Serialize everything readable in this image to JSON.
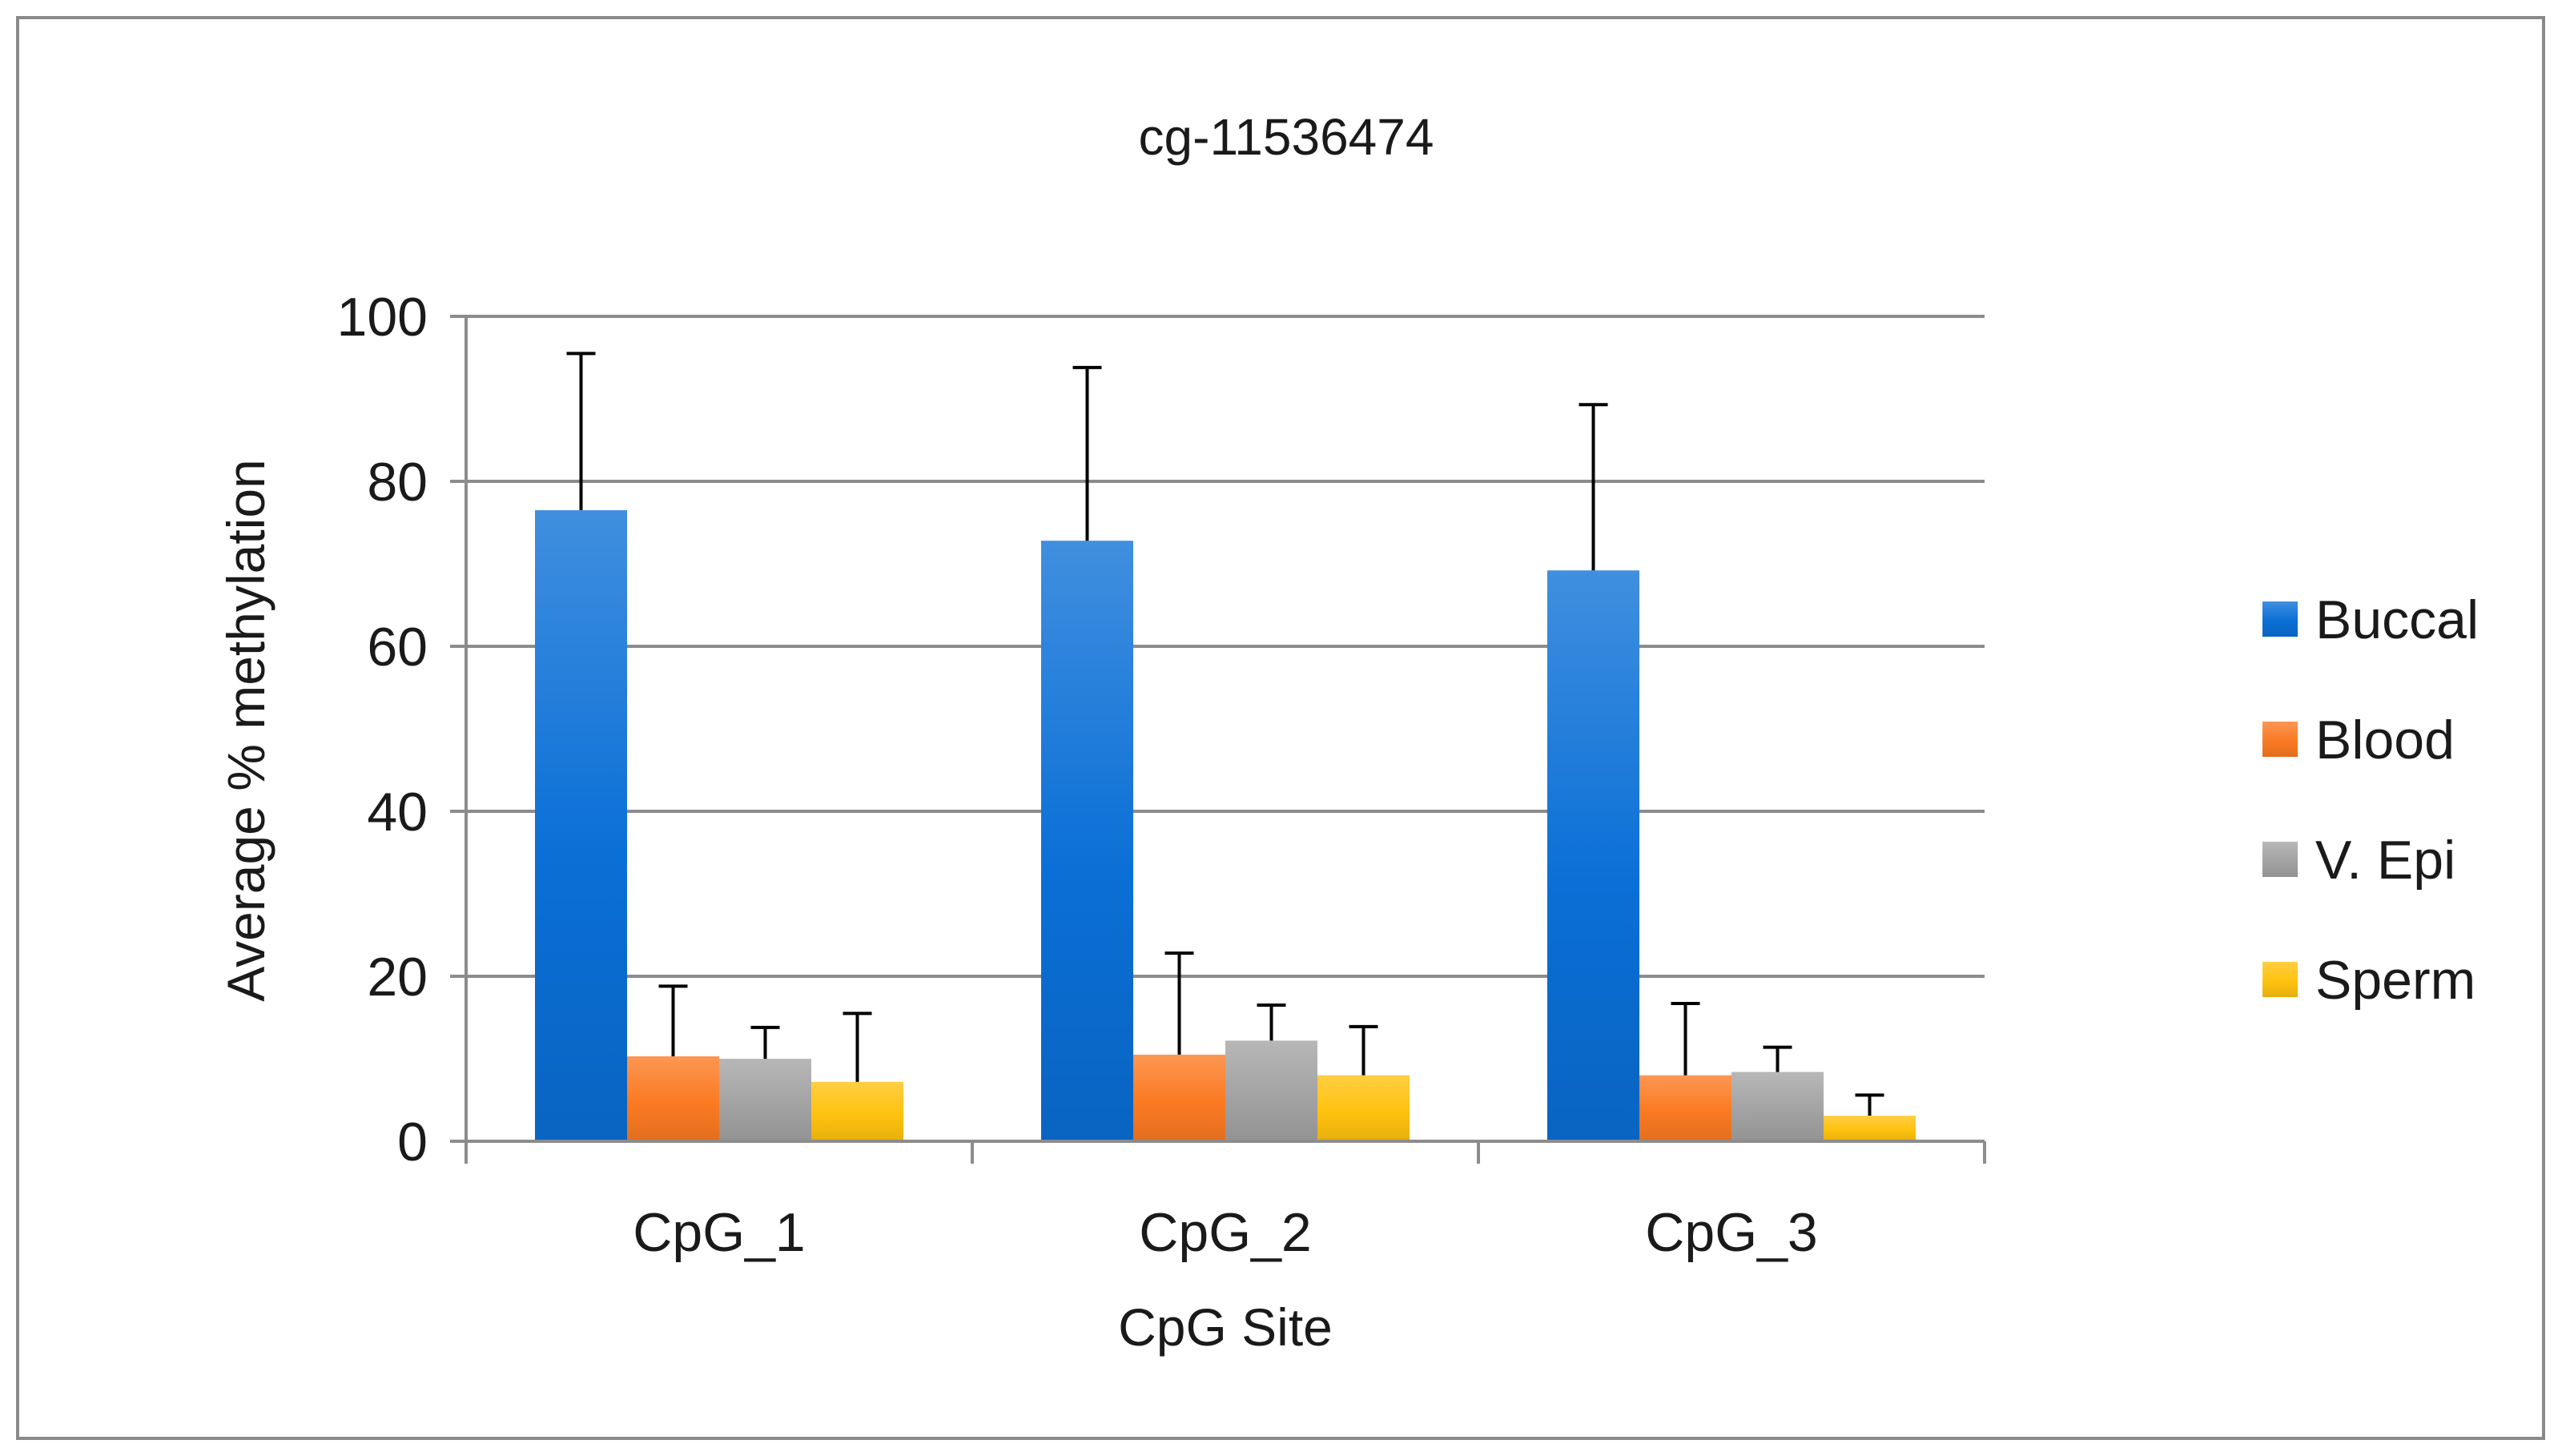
{
  "chart_data": {
    "type": "bar",
    "title": "cg-11536474",
    "xlabel": "CpG Site",
    "ylabel": "Average % methylation",
    "ylim": [
      0,
      100
    ],
    "yticks": [
      "0",
      "20",
      "40",
      "60",
      "80",
      "100"
    ],
    "categories": [
      "CpG_1",
      "CpG_2",
      "CpG_3"
    ],
    "series": [
      {
        "name": "Buccal",
        "color": "#0a6fd6",
        "values": [
          76.5,
          72.8,
          69.2
        ],
        "error": [
          19.0,
          21.0,
          20.1
        ]
      },
      {
        "name": "Blood",
        "color": "#fb7a22",
        "values": [
          10.3,
          10.5,
          8.0
        ],
        "error": [
          8.5,
          12.3,
          8.7
        ]
      },
      {
        "name": "V. Epi",
        "color": "#a3a3a3",
        "values": [
          10.0,
          12.2,
          8.4
        ],
        "error": [
          3.8,
          4.3,
          3.0
        ]
      },
      {
        "name": "Sperm",
        "color": "#ffc20e",
        "values": [
          7.2,
          8.0,
          3.1
        ],
        "error": [
          8.3,
          5.9,
          2.5
        ]
      }
    ],
    "error_bars": "positive",
    "grid": true,
    "legend": "right"
  }
}
